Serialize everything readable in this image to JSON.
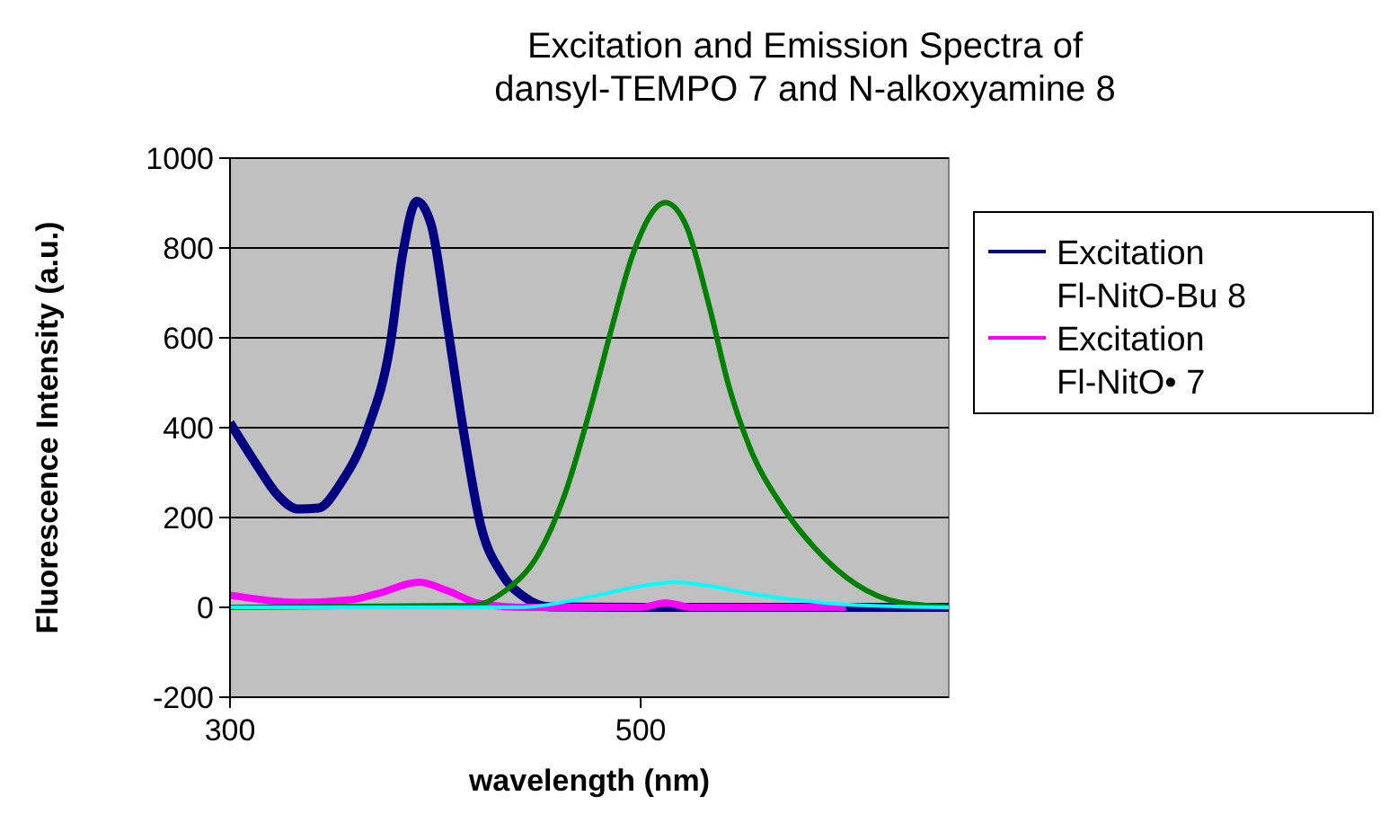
{
  "chart_data": {
    "type": "line",
    "title": "Excitation and Emission Spectra of dansyl-TEMPO 7 and N-alkoxyamine 8",
    "xlabel": "wavelength (nm)",
    "ylabel": "Fluorescence Intensity (a.u.)",
    "xlim": [
      300,
      650
    ],
    "xticks": [
      300,
      500
    ],
    "ylim": [
      -200,
      1000
    ],
    "yticks": [
      -200,
      0,
      200,
      400,
      600,
      800,
      1000
    ],
    "grid": "y",
    "legend": "right",
    "marker": "none",
    "line_style": "solid",
    "series": [
      {
        "name": "Excitation Fl-NitO-Bu 8",
        "color": "#000080",
        "x": [
          300,
          313,
          323,
          333,
          343,
          354,
          367,
          378,
          384,
          391,
          398,
          406,
          414,
          422,
          432,
          443,
          456,
          500,
          650
        ],
        "values": [
          411,
          317,
          251,
          219,
          221,
          277,
          397,
          584,
          784,
          904,
          851,
          624,
          384,
          184,
          77,
          24,
          1,
          0,
          0
        ]
      },
      {
        "name": "Excitation Fl-NitO• 7",
        "color": "#ff00ff",
        "x": [
          300,
          333,
          359,
          372,
          392,
          406,
          422,
          444,
          500,
          512,
          525,
          600
        ],
        "values": [
          27,
          11,
          17,
          31,
          56,
          37,
          8,
          0,
          0,
          10,
          0,
          0
        ]
      },
      {
        "color": "#008000",
        "x": [
          300,
          418,
          434,
          450,
          463,
          476,
          486,
          496,
          512,
          522,
          533,
          543,
          553,
          569,
          585,
          605,
          626,
          650
        ],
        "values": [
          0,
          4,
          37,
          117,
          251,
          451,
          624,
          784,
          901,
          851,
          677,
          491,
          357,
          224,
          131,
          51,
          11,
          1
        ]
      },
      {
        "color": "#00ffff",
        "x": [
          300,
          440,
          476,
          496,
          517,
          533,
          553,
          579,
          605,
          650
        ],
        "values": [
          0,
          0,
          24,
          44,
          56,
          48,
          31,
          15,
          5,
          0
        ]
      }
    ]
  }
}
